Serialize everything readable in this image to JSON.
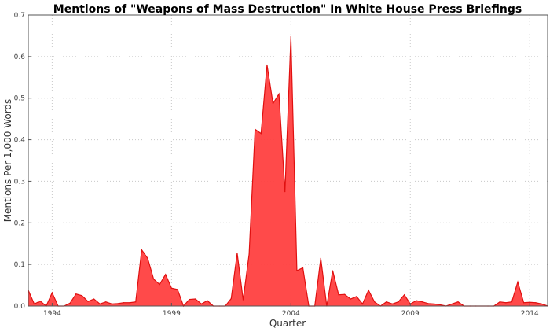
{
  "chart_data": {
    "type": "area",
    "title": "Mentions of \"Weapons of Mass Destruction\" In White House Press Briefings",
    "xlabel": "Quarter",
    "ylabel": "Mentions Per 1,000 Words",
    "xlim": [
      1993.0,
      2014.75
    ],
    "ylim": [
      0,
      0.7
    ],
    "x_ticks": [
      1994,
      1999,
      2004,
      2009,
      2014
    ],
    "y_ticks": [
      0.0,
      0.1,
      0.2,
      0.3,
      0.4,
      0.5,
      0.6,
      0.7
    ],
    "y_tick_labels": [
      "0.0",
      "0.1",
      "0.2",
      "0.3",
      "0.4",
      "0.5",
      "0.6",
      "0.7"
    ],
    "grid": true,
    "fill_color": "#ff4040",
    "line_color": "#e01010",
    "series": [
      {
        "x": [
          1993.0,
          1993.25,
          1993.5,
          1993.75,
          1994.0,
          1994.25,
          1994.5,
          1994.75,
          1995.0,
          1995.25,
          1995.5,
          1995.75,
          1996.0,
          1996.25,
          1996.5,
          1996.75,
          1997.0,
          1997.25,
          1997.5,
          1997.75,
          1998.0,
          1998.25,
          1998.5,
          1998.75,
          1999.0,
          1999.25,
          1999.5,
          1999.75,
          2000.0,
          2000.25,
          2000.5,
          2000.75,
          2001.0,
          2001.25,
          2001.5,
          2001.75,
          2002.0,
          2002.25,
          2002.5,
          2002.75,
          2003.0,
          2003.25,
          2003.5,
          2003.75,
          2004.0,
          2004.25,
          2004.5,
          2004.75,
          2005.0,
          2005.25,
          2005.5,
          2005.75,
          2006.0,
          2006.25,
          2006.5,
          2006.75,
          2007.0,
          2007.25,
          2007.5,
          2007.75,
          2008.0,
          2008.25,
          2008.5,
          2008.75,
          2009.0,
          2009.25,
          2009.5,
          2009.75,
          2010.0,
          2010.25,
          2010.5,
          2010.75,
          2011.0,
          2011.25,
          2011.5,
          2011.75,
          2012.0,
          2012.25,
          2012.5,
          2012.75,
          2013.0,
          2013.25,
          2013.5,
          2013.75,
          2014.0,
          2014.25,
          2014.5,
          2014.75
        ],
        "values": [
          0.038,
          0.005,
          0.012,
          0.0,
          0.032,
          0.0,
          0.0,
          0.007,
          0.029,
          0.025,
          0.011,
          0.017,
          0.005,
          0.01,
          0.005,
          0.006,
          0.008,
          0.008,
          0.01,
          0.135,
          0.115,
          0.065,
          0.052,
          0.076,
          0.043,
          0.04,
          0.0,
          0.016,
          0.017,
          0.005,
          0.013,
          0.0,
          0.0,
          0.0,
          0.018,
          0.127,
          0.015,
          0.125,
          0.425,
          0.415,
          0.58,
          0.487,
          0.51,
          0.275,
          0.648,
          0.085,
          0.092,
          0.0,
          0.0,
          0.115,
          0.0,
          0.085,
          0.027,
          0.028,
          0.017,
          0.023,
          0.005,
          0.038,
          0.01,
          0.0,
          0.01,
          0.005,
          0.01,
          0.027,
          0.005,
          0.013,
          0.01,
          0.006,
          0.005,
          0.003,
          0.0,
          0.005,
          0.01,
          0.0,
          0.0,
          0.0,
          0.0,
          0.0,
          0.0,
          0.01,
          0.008,
          0.01,
          0.058,
          0.008,
          0.009,
          0.008,
          0.005,
          0.0
        ]
      }
    ]
  }
}
